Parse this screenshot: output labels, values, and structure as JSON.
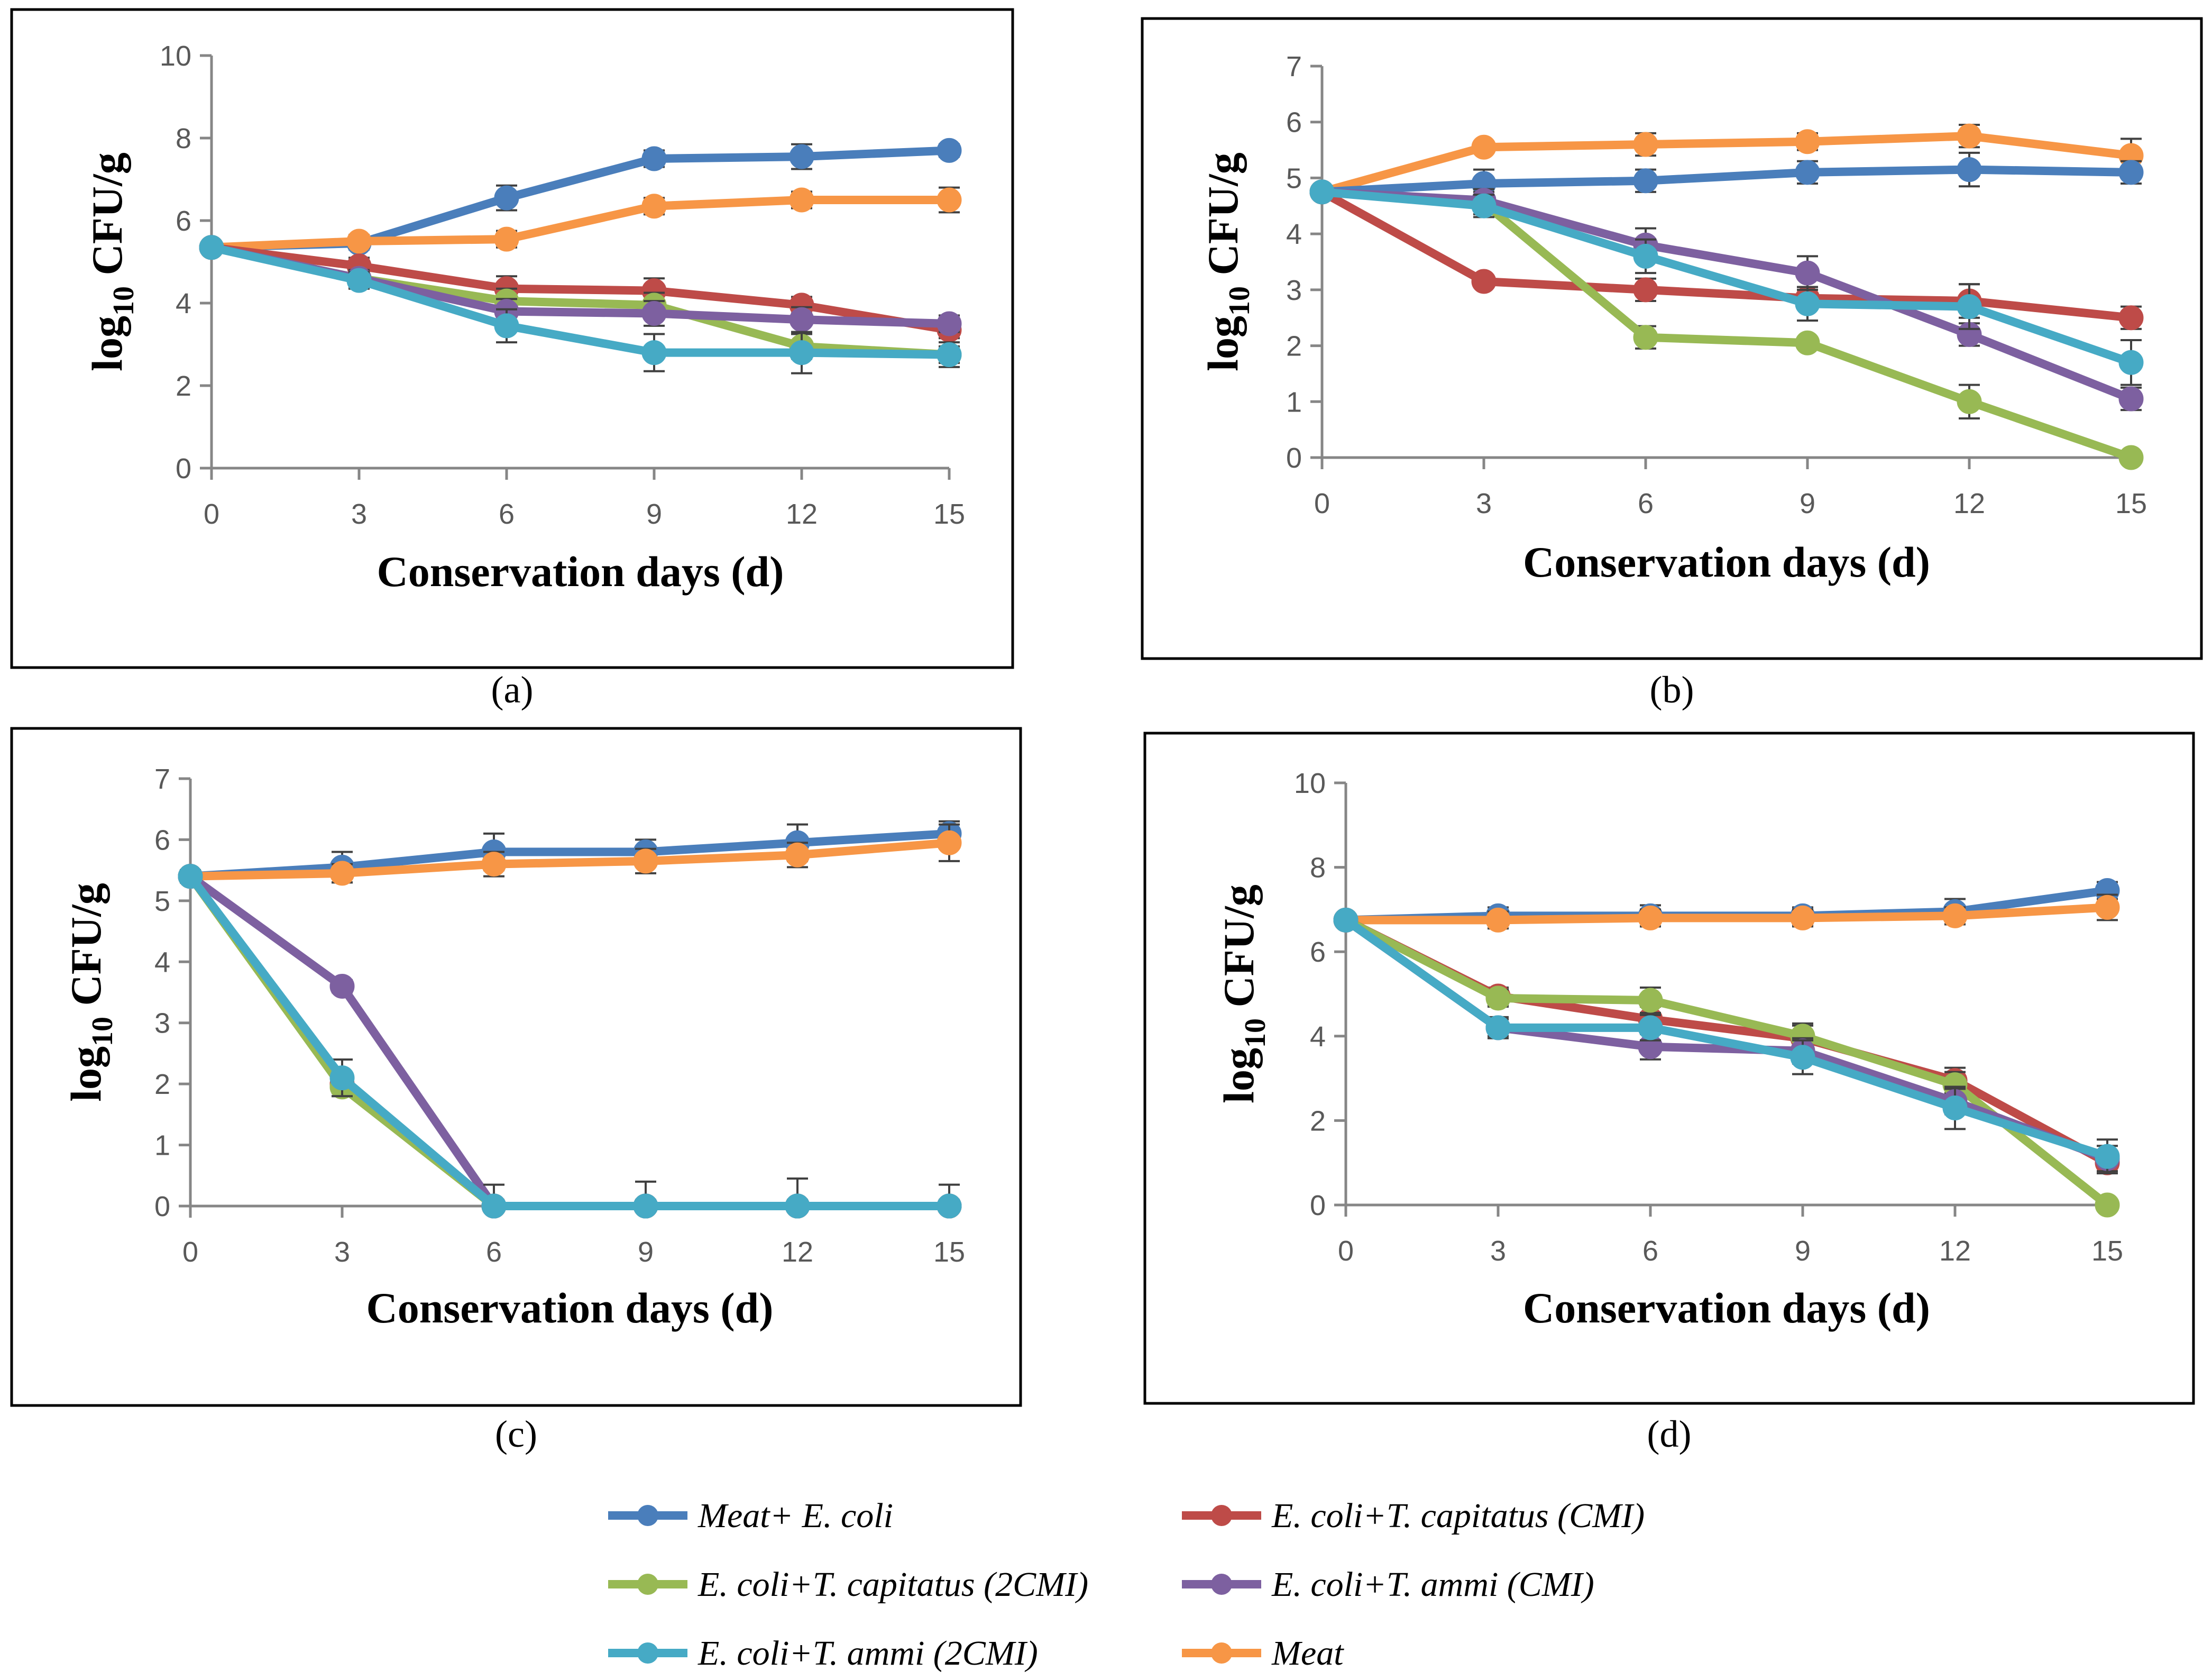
{
  "x": [
    0,
    3,
    6,
    9,
    12,
    15
  ],
  "legend": [
    {
      "key": "meat_ecoli",
      "label": "Meat+ E. coli",
      "color": "#4a7ebb"
    },
    {
      "key": "tcap_cmi",
      "label": "E. coli+T. capitatus (CMI)",
      "color": "#be4b48"
    },
    {
      "key": "tcap_2cmi",
      "label": "E. coli+T. capitatus (2CMI)",
      "color": "#98b954"
    },
    {
      "key": "tammi_cmi",
      "label": "E. coli+T. ammi (CMI)",
      "color": "#7d60a0"
    },
    {
      "key": "tammi_2cmi",
      "label": "E. coli+T. ammi (2CMI)",
      "color": "#46aac5"
    },
    {
      "key": "meat",
      "label": "Meat",
      "color": "#f79646"
    }
  ],
  "chart_data": [
    {
      "type": "line",
      "panel_label": "(a)",
      "xlabel": "Conservation days (d)",
      "ylabel_main": "log",
      "ylabel_sub": "10",
      "ylabel_unit": " CFU/g",
      "xlim": [
        0,
        15
      ],
      "ylim": [
        0,
        10
      ],
      "yticks": [
        0,
        2,
        4,
        6,
        8,
        10
      ],
      "xticks": [
        0,
        3,
        6,
        9,
        12,
        15
      ],
      "series": [
        {
          "key": "meat_ecoli",
          "values": [
            5.35,
            5.45,
            6.55,
            7.5,
            7.55,
            7.7
          ],
          "err": [
            0.1,
            0.15,
            0.3,
            0.2,
            0.3,
            0.15
          ]
        },
        {
          "key": "meat",
          "values": [
            5.35,
            5.5,
            5.55,
            6.35,
            6.5,
            6.5
          ],
          "err": [
            0.1,
            0.15,
            0.2,
            0.2,
            0.2,
            0.3
          ]
        },
        {
          "key": "tcap_cmi",
          "values": [
            5.35,
            4.9,
            4.35,
            4.3,
            3.95,
            3.35
          ],
          "err": [
            0.1,
            0.2,
            0.3,
            0.3,
            0.2,
            0.2
          ]
        },
        {
          "key": "tcap_2cmi",
          "values": [
            5.35,
            4.6,
            4.05,
            3.95,
            2.95,
            2.75
          ],
          "err": [
            0.1,
            0.2,
            0.3,
            0.3,
            0.3,
            0.2
          ]
        },
        {
          "key": "tammi_cmi",
          "values": [
            5.35,
            4.6,
            3.8,
            3.75,
            3.6,
            3.5
          ],
          "err": [
            0.1,
            0.2,
            0.3,
            0.3,
            0.3,
            0.2
          ]
        },
        {
          "key": "tammi_2cmi",
          "values": [
            5.35,
            4.55,
            3.45,
            2.8,
            2.8,
            2.75
          ],
          "err": [
            0.1,
            0.2,
            0.4,
            0.45,
            0.5,
            0.3
          ]
        }
      ]
    },
    {
      "type": "line",
      "panel_label": "(b)",
      "xlabel": "Conservation days (d)",
      "ylabel_main": "log",
      "ylabel_sub": "10",
      "ylabel_unit": " CFU/g",
      "xlim": [
        0,
        15
      ],
      "ylim": [
        0,
        7
      ],
      "yticks": [
        0,
        1,
        2,
        3,
        4,
        5,
        6,
        7
      ],
      "xticks": [
        0,
        3,
        6,
        9,
        12,
        15
      ],
      "series": [
        {
          "key": "meat",
          "values": [
            4.75,
            5.55,
            5.6,
            5.65,
            5.75,
            5.4
          ],
          "err": [
            0.1,
            0.1,
            0.2,
            0.15,
            0.2,
            0.3
          ]
        },
        {
          "key": "meat_ecoli",
          "values": [
            4.75,
            4.9,
            4.95,
            5.1,
            5.15,
            5.1
          ],
          "err": [
            0.1,
            0.25,
            0.2,
            0.2,
            0.3,
            0.2
          ]
        },
        {
          "key": "tcap_cmi",
          "values": [
            4.75,
            3.15,
            3.0,
            2.85,
            2.8,
            2.5
          ],
          "err": [
            0.1,
            0.1,
            0.2,
            0.2,
            0.3,
            0.2
          ]
        },
        {
          "key": "tcap_2cmi",
          "values": [
            4.75,
            4.55,
            2.15,
            2.05,
            1.0,
            0.0
          ],
          "err": [
            0.1,
            0.2,
            0.2,
            0.1,
            0.3,
            0.1
          ]
        },
        {
          "key": "tammi_cmi",
          "values": [
            4.75,
            4.6,
            3.8,
            3.3,
            2.2,
            1.05
          ],
          "err": [
            0.1,
            0.2,
            0.3,
            0.3,
            0.2,
            0.2
          ]
        },
        {
          "key": "tammi_2cmi",
          "values": [
            4.75,
            4.5,
            3.6,
            2.75,
            2.7,
            1.7
          ],
          "err": [
            0.1,
            0.2,
            0.3,
            0.3,
            0.4,
            0.4
          ]
        }
      ]
    },
    {
      "type": "line",
      "panel_label": "(c)",
      "xlabel": "Conservation days (d)",
      "ylabel_main": "log",
      "ylabel_sub": "10",
      "ylabel_unit": " CFU/g",
      "xlim": [
        0,
        15
      ],
      "ylim": [
        0,
        7
      ],
      "yticks": [
        0,
        1,
        2,
        3,
        4,
        5,
        6,
        7
      ],
      "xticks": [
        0,
        3,
        6,
        9,
        12,
        15
      ],
      "series": [
        {
          "key": "meat_ecoli",
          "values": [
            5.4,
            5.55,
            5.8,
            5.8,
            5.95,
            6.1
          ],
          "err": [
            0.1,
            0.25,
            0.3,
            0.2,
            0.3,
            0.2
          ]
        },
        {
          "key": "meat",
          "values": [
            5.4,
            5.45,
            5.6,
            5.65,
            5.75,
            5.95
          ],
          "err": [
            0.1,
            0.15,
            0.2,
            0.2,
            0.2,
            0.3
          ]
        },
        {
          "key": "tcap_cmi",
          "values": [
            5.4,
            2.0,
            0.0,
            0.0,
            0.0,
            0.0
          ],
          "err": [
            0.1,
            0.15,
            0.1,
            0.1,
            0.1,
            0.1
          ]
        },
        {
          "key": "tcap_2cmi",
          "values": [
            5.4,
            1.95,
            0.0,
            0.0,
            0.0,
            0.0
          ],
          "err": [
            0.1,
            0.15,
            0.1,
            0.1,
            0.1,
            0.1
          ]
        },
        {
          "key": "tammi_cmi",
          "values": [
            5.4,
            3.6,
            0.0,
            0.0,
            0.0,
            0.0
          ],
          "err": [
            0.1,
            0.1,
            0.1,
            0.1,
            0.1,
            0.1
          ]
        },
        {
          "key": "tammi_2cmi",
          "values": [
            5.4,
            2.1,
            0.0,
            0.0,
            0.0,
            0.0
          ],
          "err": [
            0.1,
            0.3,
            0.35,
            0.4,
            0.45,
            0.35
          ]
        }
      ]
    },
    {
      "type": "line",
      "panel_label": "(d)",
      "xlabel": "Conservation days (d)",
      "ylabel_main": "log",
      "ylabel_sub": "10",
      "ylabel_unit": " CFU/g",
      "xlim": [
        0,
        15
      ],
      "ylim": [
        0,
        10
      ],
      "yticks": [
        0,
        2,
        4,
        6,
        8,
        10
      ],
      "xticks": [
        0,
        3,
        6,
        9,
        12,
        15
      ],
      "series": [
        {
          "key": "meat_ecoli",
          "values": [
            6.75,
            6.85,
            6.85,
            6.85,
            6.95,
            7.45
          ],
          "err": [
            0.1,
            0.2,
            0.25,
            0.2,
            0.3,
            0.2
          ]
        },
        {
          "key": "meat",
          "values": [
            6.75,
            6.75,
            6.8,
            6.8,
            6.85,
            7.05
          ],
          "err": [
            0.1,
            0.2,
            0.2,
            0.2,
            0.2,
            0.3
          ]
        },
        {
          "key": "tcap_cmi",
          "values": [
            6.75,
            4.95,
            4.4,
            3.95,
            2.95,
            1.0
          ],
          "err": [
            0.1,
            0.2,
            0.3,
            0.3,
            0.3,
            0.2
          ]
        },
        {
          "key": "tcap_2cmi",
          "values": [
            6.75,
            4.9,
            4.85,
            4.0,
            2.85,
            0.0
          ],
          "err": [
            0.1,
            0.2,
            0.3,
            0.3,
            0.3,
            0.1
          ]
        },
        {
          "key": "tammi_cmi",
          "values": [
            6.75,
            4.2,
            3.75,
            3.65,
            2.45,
            1.1
          ],
          "err": [
            0.1,
            0.2,
            0.3,
            0.3,
            0.3,
            0.3
          ]
        },
        {
          "key": "tammi_2cmi",
          "values": [
            6.75,
            4.2,
            4.2,
            3.5,
            2.3,
            1.15
          ],
          "err": [
            0.1,
            0.25,
            0.3,
            0.4,
            0.5,
            0.4
          ]
        }
      ]
    }
  ]
}
